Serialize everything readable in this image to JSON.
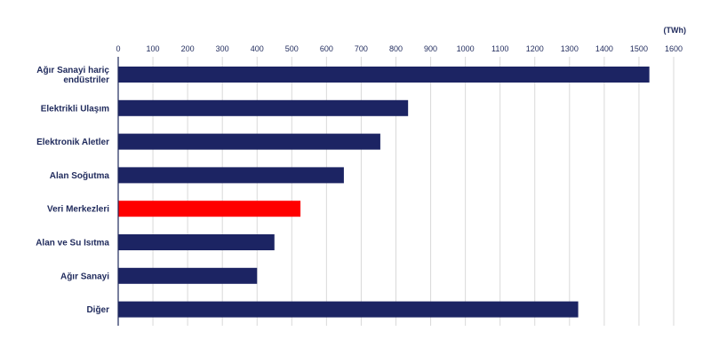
{
  "chart_data": {
    "type": "bar",
    "orientation": "horizontal",
    "unit": "(TWh)",
    "categories": [
      [
        "Ağır Sanayi hariç",
        "endüstriler"
      ],
      [
        "Elektrikli Ulaşım"
      ],
      [
        "Elektronik Aletler"
      ],
      [
        "Alan Soğutma"
      ],
      [
        "Veri Merkezleri"
      ],
      [
        "Alan ve Su Isıtma"
      ],
      [
        "Ağır Sanayi"
      ],
      [
        "Diğer"
      ]
    ],
    "values": [
      1530,
      835,
      755,
      650,
      525,
      450,
      400,
      1325
    ],
    "highlight_index": 4,
    "xlim": [
      0,
      1600
    ],
    "xticks": [
      0,
      100,
      200,
      300,
      400,
      500,
      600,
      700,
      800,
      900,
      1000,
      1100,
      1200,
      1300,
      1400,
      1500,
      1600
    ],
    "grid": true,
    "legend": "none",
    "colors": {
      "bar": "#1c2463",
      "highlight": "#ff0000",
      "text": "#1f2a5c"
    }
  }
}
